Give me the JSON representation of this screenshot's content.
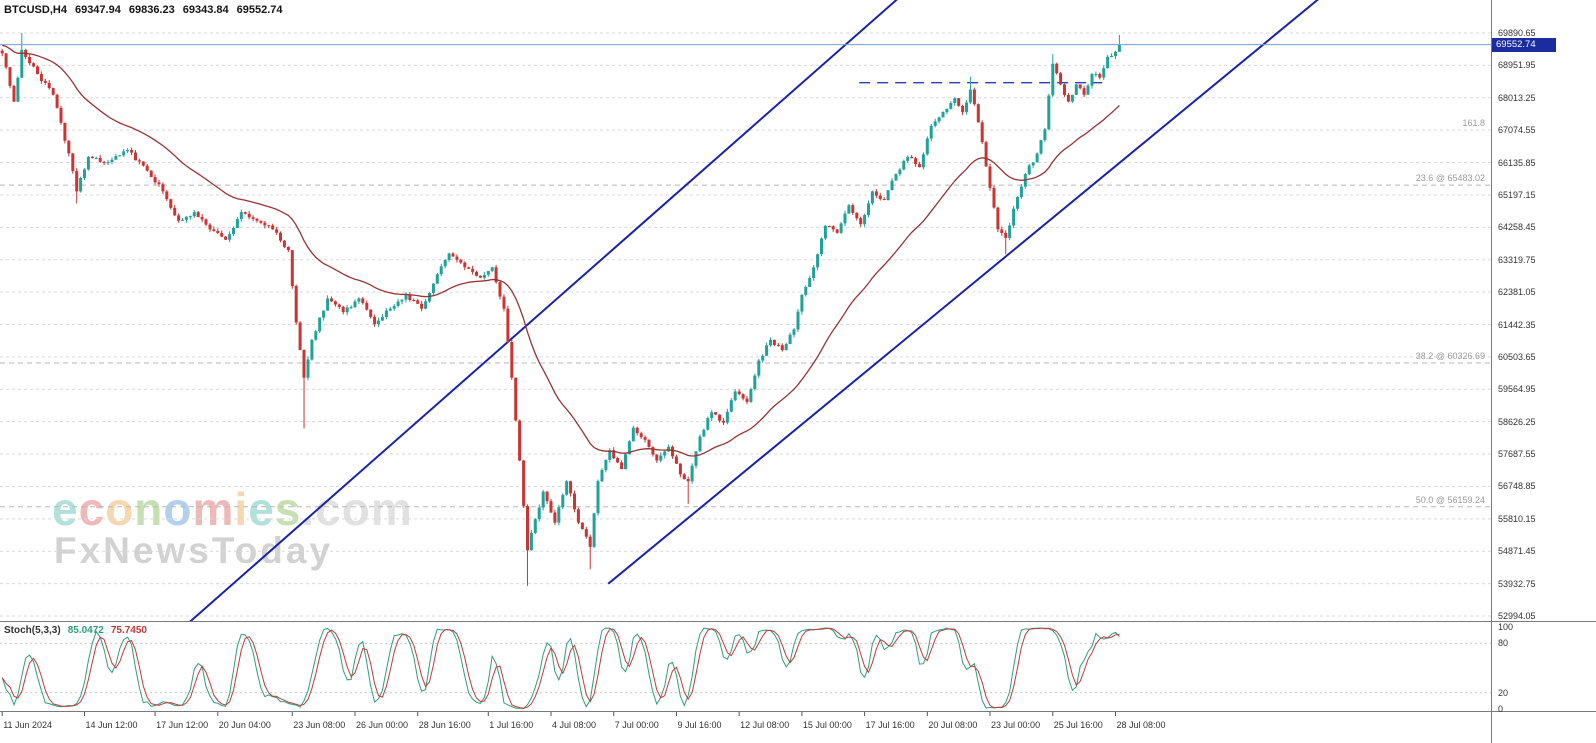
{
  "ticker": {
    "symbol_tf": "BTCUSD,H4",
    "open": "69347.94",
    "high": "69836.23",
    "low": "69343.84",
    "close": "69552.74"
  },
  "watermark": {
    "brand": "economies",
    "brand_suffix": ".com",
    "subbrand": "FxNewsToday",
    "brand_colors": [
      "#46b8a9",
      "#d95b5b",
      "#e8a33d",
      "#7ab648",
      "#4a90d9",
      "#d95b5b",
      "#e8a33d",
      "#46b8a9",
      "#7ab648"
    ]
  },
  "chart_data": {
    "type": "candlestick",
    "symbol": "BTCUSD",
    "timeframe": "H4",
    "bars_total": 286,
    "ylim": [
      52849.15,
      70847.06
    ],
    "grid": true,
    "grid_color": "#d9d9d9",
    "price_ticks": [
      69890.65,
      68951.95,
      68013.25,
      67074.55,
      66135.85,
      65197.15,
      64258.45,
      63319.75,
      62381.05,
      61442.35,
      60503.65,
      59564.95,
      58626.25,
      57687.55,
      56748.85,
      55810.15,
      54871.45,
      53932.75,
      52994.05
    ],
    "time_ticks": [
      {
        "bar": 0,
        "label": "11 Jun 2024"
      },
      {
        "bar": 21,
        "label": "14 Jun 12:00"
      },
      {
        "bar": 39,
        "label": "17 Jun 12:00"
      },
      {
        "bar": 55,
        "label": "20 Jun 04:00"
      },
      {
        "bar": 74,
        "label": "23 Jun 08:00"
      },
      {
        "bar": 90,
        "label": "26 Jun 00:00"
      },
      {
        "bar": 106,
        "label": "28 Jun 16:00"
      },
      {
        "bar": 124,
        "label": "1 Jul 16:00"
      },
      {
        "bar": 140,
        "label": "4 Jul 08:00"
      },
      {
        "bar": 156,
        "label": "7 Jul 00:00"
      },
      {
        "bar": 172,
        "label": "9 Jul 16:00"
      },
      {
        "bar": 188,
        "label": "12 Jul 08:00"
      },
      {
        "bar": 204,
        "label": "15 Jul 00:00"
      },
      {
        "bar": 220,
        "label": "17 Jul 16:00"
      },
      {
        "bar": 236,
        "label": "20 Jul 08:00"
      },
      {
        "bar": 252,
        "label": "23 Jul 00:00"
      },
      {
        "bar": 268,
        "label": "25 Jul 16:00"
      },
      {
        "bar": 284,
        "label": "28 Jul 08:00"
      }
    ],
    "anchors": [
      [
        0,
        69300
      ],
      [
        3,
        67900
      ],
      [
        5,
        69400
      ],
      [
        9,
        68700
      ],
      [
        13,
        68100
      ],
      [
        17,
        66400
      ],
      [
        19,
        65300
      ],
      [
        22,
        66300
      ],
      [
        27,
        66150
      ],
      [
        32,
        66500
      ],
      [
        37,
        65900
      ],
      [
        41,
        65300
      ],
      [
        45,
        64450
      ],
      [
        49,
        64700
      ],
      [
        53,
        64200
      ],
      [
        57,
        63900
      ],
      [
        61,
        64700
      ],
      [
        65,
        64450
      ],
      [
        69,
        64200
      ],
      [
        73,
        63600
      ],
      [
        75,
        61500
      ],
      [
        77,
        59900
      ],
      [
        79,
        61000
      ],
      [
        83,
        62200
      ],
      [
        87,
        61800
      ],
      [
        91,
        62200
      ],
      [
        95,
        61450
      ],
      [
        99,
        61900
      ],
      [
        103,
        62300
      ],
      [
        107,
        61900
      ],
      [
        111,
        62900
      ],
      [
        114,
        63500
      ],
      [
        118,
        63100
      ],
      [
        122,
        62800
      ],
      [
        125,
        63100
      ],
      [
        128,
        61900
      ],
      [
        130,
        59900
      ],
      [
        132,
        57500
      ],
      [
        134,
        54900
      ],
      [
        136,
        55800
      ],
      [
        138,
        56600
      ],
      [
        141,
        55700
      ],
      [
        144,
        56900
      ],
      [
        147,
        55700
      ],
      [
        150,
        55000
      ],
      [
        152,
        56900
      ],
      [
        155,
        57800
      ],
      [
        158,
        57250
      ],
      [
        161,
        58450
      ],
      [
        164,
        58100
      ],
      [
        167,
        57500
      ],
      [
        170,
        57900
      ],
      [
        173,
        57100
      ],
      [
        175,
        56900
      ],
      [
        178,
        58200
      ],
      [
        181,
        58900
      ],
      [
        184,
        58600
      ],
      [
        187,
        59500
      ],
      [
        190,
        59200
      ],
      [
        193,
        60400
      ],
      [
        196,
        61000
      ],
      [
        199,
        60700
      ],
      [
        202,
        61300
      ],
      [
        204,
        62300
      ],
      [
        207,
        63100
      ],
      [
        210,
        64300
      ],
      [
        213,
        64100
      ],
      [
        216,
        64900
      ],
      [
        219,
        64350
      ],
      [
        222,
        65300
      ],
      [
        225,
        65050
      ],
      [
        228,
        65800
      ],
      [
        231,
        66300
      ],
      [
        234,
        66000
      ],
      [
        237,
        67200
      ],
      [
        240,
        67600
      ],
      [
        243,
        68000
      ],
      [
        245,
        67600
      ],
      [
        247,
        68250
      ],
      [
        249,
        67300
      ],
      [
        252,
        65400
      ],
      [
        254,
        64200
      ],
      [
        256,
        63950
      ],
      [
        258,
        64800
      ],
      [
        261,
        65800
      ],
      [
        264,
        66400
      ],
      [
        266,
        67100
      ],
      [
        268,
        69000
      ],
      [
        270,
        68400
      ],
      [
        272,
        67900
      ],
      [
        274,
        68400
      ],
      [
        276,
        68100
      ],
      [
        278,
        68700
      ],
      [
        280,
        68600
      ],
      [
        282,
        69200
      ],
      [
        284,
        69347.94
      ],
      [
        285,
        69552.74
      ]
    ],
    "wick_overrides": [
      {
        "bar": 5,
        "high": 69890.0
      },
      {
        "bar": 19,
        "low": 64950.0
      },
      {
        "bar": 77,
        "low": 58430.0
      },
      {
        "bar": 134,
        "low": 53870.0
      },
      {
        "bar": 150,
        "low": 54350.0
      },
      {
        "bar": 175,
        "low": 56250.0
      },
      {
        "bar": 247,
        "high": 68620.0
      },
      {
        "bar": 256,
        "low": 63480.0
      },
      {
        "bar": 268,
        "high": 69280.0
      },
      {
        "bar": 285,
        "high": 69836.23,
        "low": 69343.84
      }
    ],
    "noise_amp": 130,
    "wick_amp": 180,
    "current_price": 69552.74,
    "current_price_label": "69552.74",
    "tag_bg": "#1B2C9E",
    "bid_line_color": "#7e9ed0",
    "candle_colors": {
      "bull": "#20A29A",
      "bear": "#CC3333"
    },
    "ma": {
      "period": 34,
      "seed": 69550,
      "color": "#993333"
    },
    "channel_lines": [
      {
        "from": [
          35,
          51500
        ],
        "to": [
          240,
          72000
        ],
        "color": "#1A23A8",
        "width": 2
      },
      {
        "from": [
          155,
          53930
        ],
        "to": [
          345,
          71700
        ],
        "color": "#1A23A8",
        "width": 2
      }
    ],
    "resistance": {
      "price": 68450,
      "from_bar": 219,
      "to_bar": 281,
      "color": "#2A3FB0"
    },
    "fib_levels": [
      {
        "label": "23.6 @ 65483.02",
        "price": 65483.02
      },
      {
        "label": "38.2 @ 60326.69",
        "price": 60326.69
      },
      {
        "label": "50.0 @ 56159.24",
        "price": 56159.24
      }
    ],
    "extra_right_label": {
      "text": "161.8",
      "price": 67282
    }
  },
  "indicator": {
    "name": "Stoch(5,3,3)",
    "value_main": "85.0472",
    "value_signal": "75.7450",
    "params": {
      "k": 5,
      "d": 3,
      "slowing": 3
    },
    "levels": [
      80,
      20
    ],
    "axis_ticks": [
      "100",
      "80",
      "20",
      "0"
    ],
    "colors": {
      "main": "#2E9E7A",
      "signal": "#C23A3A",
      "level_line": "#c8c8c8"
    }
  }
}
